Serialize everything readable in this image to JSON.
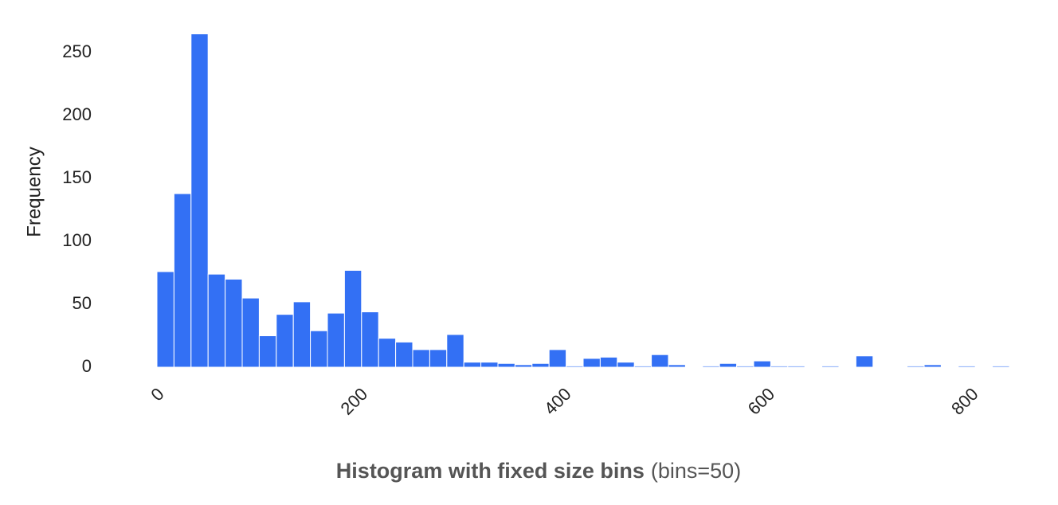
{
  "chart_data": {
    "type": "histogram",
    "title": "Histogram with fixed size bins",
    "subtitle": "(bins=50)",
    "y_label": "Frequency",
    "color": "#3370f4",
    "bins": [
      0,
      16.75,
      33.5,
      50.25,
      67,
      83.75,
      100.5,
      117.25,
      134,
      150.75,
      167.5,
      184.25,
      201,
      217.75,
      234.5,
      251.25,
      268,
      284.75,
      301.5,
      318.25,
      335,
      351.75,
      368.5,
      385.25,
      402,
      418.75,
      435.5,
      452.25,
      469,
      485.75,
      502.5,
      519.25,
      536,
      552.75,
      569.5,
      586.25,
      603,
      619.75,
      636.5,
      653.25,
      670,
      686.75,
      703.5,
      720.25,
      737,
      753.75,
      770.5,
      787.25,
      804,
      820.75,
      837.5
    ],
    "values": [
      76,
      138,
      265,
      74,
      70,
      55,
      25,
      42,
      52,
      29,
      43,
      77,
      44,
      23,
      20,
      14,
      14,
      26,
      4,
      4,
      3,
      2,
      3,
      14,
      1,
      7,
      8,
      4,
      1,
      10,
      2,
      0,
      1,
      3,
      1,
      5,
      1,
      1,
      0,
      1,
      0,
      9,
      0,
      0,
      1,
      2,
      0,
      1,
      0,
      1
    ],
    "xlim": [
      0,
      837.5
    ],
    "xticks": [
      0,
      200,
      400,
      600,
      800
    ],
    "ylim": [
      0,
      278
    ],
    "yticks": [
      0,
      50,
      100,
      150,
      200,
      250
    ],
    "grid": false
  }
}
